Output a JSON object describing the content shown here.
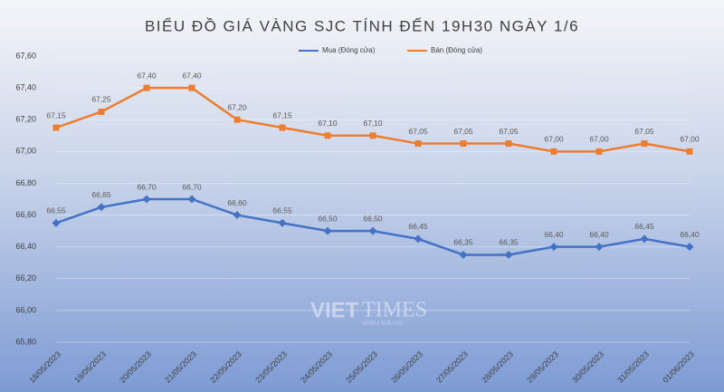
{
  "chart_data": {
    "type": "line",
    "title": "BIỂU ĐỒ GIÁ VÀNG SJC TÍNH ĐẾN 19H30 NGÀY 1/6",
    "categories": [
      "18/05/2023",
      "19/05/2023",
      "20/05/2023",
      "21/05/2023",
      "22/05/2023",
      "23/05/2023",
      "24/05/2023",
      "25/05/2023",
      "26/05/2023",
      "27/05/2023",
      "28/05/2023",
      "29/05/2023",
      "30/05/2023",
      "31/05/2023",
      "01/06/2023"
    ],
    "series": [
      {
        "name": "Mua (Đóng cửa)",
        "color": "#4472c4",
        "marker": "diamond",
        "values": [
          66.55,
          66.65,
          66.7,
          66.7,
          66.6,
          66.55,
          66.5,
          66.5,
          66.45,
          66.35,
          66.35,
          66.4,
          66.4,
          66.45,
          66.4
        ],
        "value_labels": [
          "66,55",
          "66,65",
          "66,70",
          "66,70",
          "66,60",
          "66,55",
          "66,50",
          "66,50",
          "66,45",
          "66,35",
          "66,35",
          "66,40",
          "66,40",
          "66,45",
          "66,40"
        ]
      },
      {
        "name": "Bán (Đóng cửa)",
        "color": "#ed7d31",
        "marker": "square",
        "values": [
          67.15,
          67.25,
          67.4,
          67.4,
          67.2,
          67.15,
          67.1,
          67.1,
          67.05,
          67.05,
          67.05,
          67.0,
          67.0,
          67.05,
          67.0
        ],
        "value_labels": [
          "67,15",
          "67,25",
          "67,40",
          "67,40",
          "67,20",
          "67,15",
          "67,10",
          "67,10",
          "67,05",
          "67,05",
          "67,05",
          "67,00",
          "67,00",
          "67,05",
          "67,00"
        ]
      }
    ],
    "ylim": [
      65.8,
      67.6
    ],
    "yticks": [
      {
        "value": 65.8,
        "label": "65,80"
      },
      {
        "value": 66.0,
        "label": "66,00"
      },
      {
        "value": 66.2,
        "label": "66,20"
      },
      {
        "value": 66.4,
        "label": "66,40"
      },
      {
        "value": 66.6,
        "label": "66,60"
      },
      {
        "value": 66.8,
        "label": "66,80"
      },
      {
        "value": 67.0,
        "label": "67,00"
      },
      {
        "value": 67.2,
        "label": "67,20"
      },
      {
        "value": 67.4,
        "label": "67,40"
      },
      {
        "value": 67.6,
        "label": "67,60"
      }
    ],
    "grid": true,
    "legend": "top",
    "watermark": {
      "brand_a": "VIET",
      "brand_b": "TIMES",
      "tagline": "NEWS & ANALYSIS"
    }
  }
}
